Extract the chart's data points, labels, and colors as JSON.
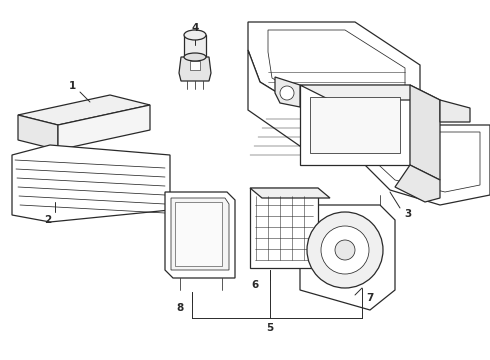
{
  "bg_color": "#ffffff",
  "line_color": "#2a2a2a",
  "figsize": [
    4.9,
    3.6
  ],
  "dpi": 100,
  "lw_main": 0.9,
  "lw_detail": 0.55,
  "label_fontsize": 7.5
}
